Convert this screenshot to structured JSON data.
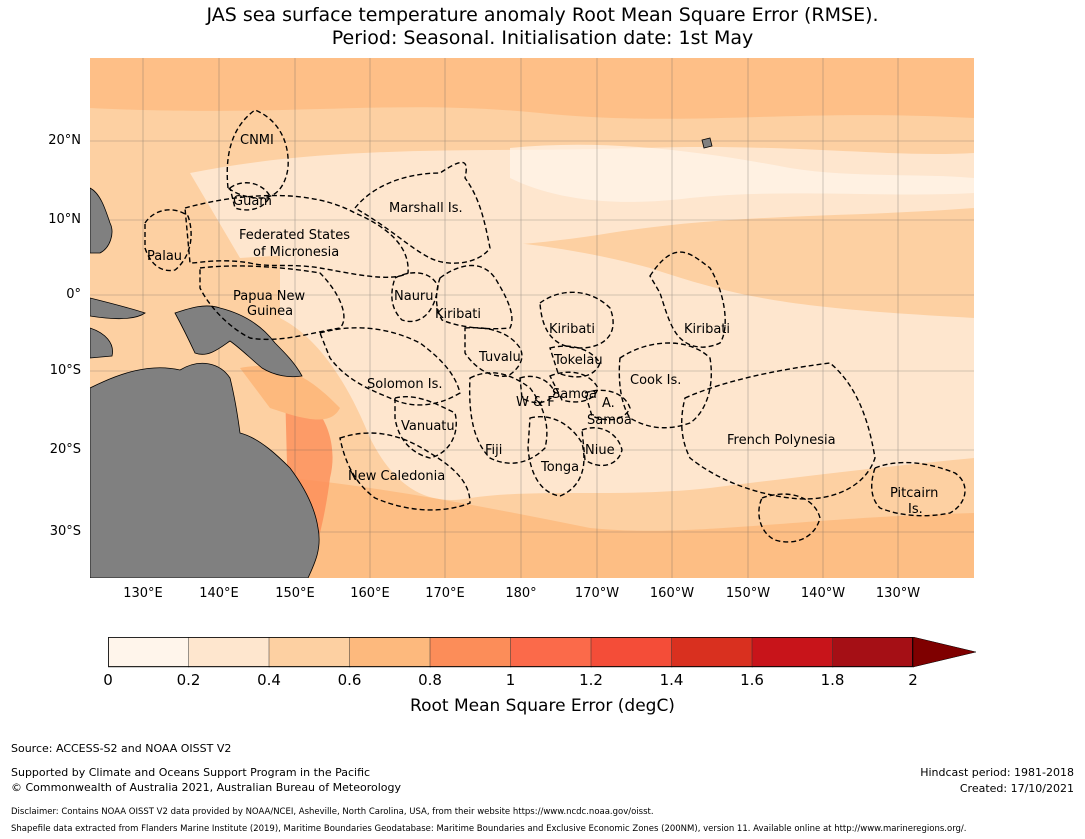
{
  "title": {
    "line1": "JAS sea surface temperature anomaly Root Mean Square Error (RMSE).",
    "line2": "Period: Seasonal. Initialisation date: 1st May"
  },
  "map": {
    "lat_labels": [
      "20°N",
      "10°N",
      "0°",
      "10°S",
      "20°S",
      "30°S"
    ],
    "lon_labels": [
      "130°E",
      "140°E",
      "150°E",
      "160°E",
      "170°E",
      "180°",
      "170°W",
      "160°W",
      "150°W",
      "140°W",
      "130°W"
    ],
    "regions": [
      "CNMI",
      "Guam",
      "Marshall Is.",
      "Federated States",
      "of Micronesia",
      "Palau",
      "Papua New",
      "Guinea",
      "Nauru",
      "Kiribati",
      "Kiribati",
      "Kiribati",
      "Tuvalu",
      "Tokelau",
      "Solomon Is.",
      "Samoa",
      "W & F",
      "A.",
      "Samoa",
      "Cook Is.",
      "Vanuatu",
      "Fiji",
      "Niue",
      "Tonga",
      "French Polynesia",
      "New Caledonia",
      "Pitcairn",
      "Is."
    ],
    "land_color": "#808080",
    "coast_color": "#000000"
  },
  "colorbar": {
    "label": "Root Mean Square Error (degC)",
    "ticks": [
      "0",
      "0.2",
      "0.4",
      "0.6",
      "0.8",
      "1",
      "1.2",
      "1.4",
      "1.6",
      "1.8",
      "2"
    ],
    "colors": [
      "#fff5eb",
      "#fee6ce",
      "#fdd0a2",
      "#fdb97d",
      "#fc8d59",
      "#fb6a4a",
      "#f44d38",
      "#d9301f",
      "#c8141a",
      "#a50f15",
      "#7f0000"
    ]
  },
  "footer": {
    "source": "Source: ACCESS-S2 and NOAA OISST V2",
    "support1": "Supported by Climate and Oceans Support Program in the Pacific",
    "support2": "© Commonwealth of Australia 2021, Australian Bureau of Meteorology",
    "hindcast": "Hindcast period: 1981-2018",
    "created": "Created: 17/10/2021",
    "disclaimer": "Disclaimer: Contains NOAA OISST V2 data provided by NOAA/NCEI, Asheville, North Carolina, USA, from their website https://www.ncdc.noaa.gov/oisst.",
    "shapefile": "Shapefile data extracted from Flanders Marine Institute (2019), Maritime Boundaries Geodatabase: Maritime Boundaries and Exclusive Economic Zones (200NM), version 11. Available online at http://www.marineregions.org/."
  }
}
